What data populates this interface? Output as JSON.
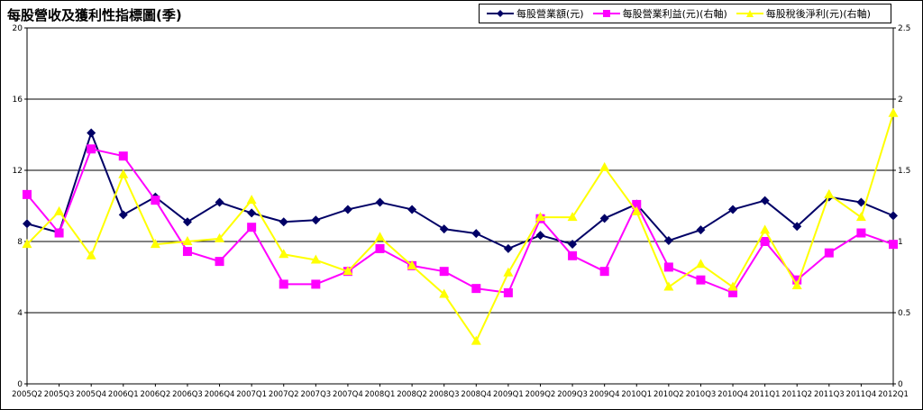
{
  "chart_data": {
    "type": "line",
    "title": "每股營收及獲利性指標圖(季)",
    "categories": [
      "2005Q2",
      "2005Q3",
      "2005Q4",
      "2006Q1",
      "2006Q2",
      "2006Q3",
      "2006Q4",
      "2007Q1",
      "2007Q2",
      "2007Q3",
      "2007Q4",
      "2008Q1",
      "2008Q2",
      "2008Q3",
      "2008Q4",
      "2009Q1",
      "2009Q2",
      "2009Q3",
      "2009Q4",
      "2010Q1",
      "2010Q2",
      "2010Q3",
      "2010Q4",
      "2011Q1",
      "2011Q2",
      "2011Q3",
      "2011Q4",
      "2012Q1"
    ],
    "y_left": {
      "range": [
        0,
        20
      ],
      "ticks": [
        "0",
        "4",
        "8",
        "12",
        "16",
        "20"
      ]
    },
    "y_right": {
      "range": [
        0,
        2.5
      ],
      "ticks": [
        "0",
        "0.5",
        "1",
        "1.5",
        "2",
        "2.5"
      ]
    },
    "grid": true,
    "legend_position": "top-right",
    "series": [
      {
        "name": "每股營業額(元)",
        "axis": "left",
        "color": "#000066",
        "marker": "diamond",
        "values": [
          9.0,
          8.5,
          14.1,
          9.5,
          10.5,
          9.1,
          10.2,
          9.6,
          9.1,
          9.2,
          9.8,
          10.2,
          9.8,
          8.7,
          8.45,
          7.6,
          8.35,
          7.85,
          9.3,
          10.1,
          8.05,
          8.65,
          9.8,
          10.3,
          8.85,
          10.5,
          10.2,
          9.45
        ]
      },
      {
        "name": "每股營業利益(元)(右軸)",
        "axis": "right",
        "color": "#FF00FF",
        "marker": "square",
        "values": [
          1.33,
          1.06,
          1.65,
          1.6,
          1.29,
          0.93,
          0.86,
          1.1,
          0.7,
          0.7,
          0.79,
          0.95,
          0.83,
          0.79,
          0.67,
          0.64,
          1.16,
          0.9,
          0.79,
          1.26,
          0.82,
          0.73,
          0.64,
          1.0,
          0.73,
          0.92,
          1.06,
          0.98
        ]
      },
      {
        "name": "每股稅後淨利(元)(右軸)",
        "axis": "right",
        "color": "#FFFF00",
        "marker": "triangle",
        "values": [
          0.98,
          1.21,
          0.9,
          1.47,
          0.98,
          1.0,
          1.02,
          1.29,
          0.91,
          0.87,
          0.79,
          1.03,
          0.83,
          0.63,
          0.3,
          0.78,
          1.17,
          1.17,
          1.52,
          1.21,
          0.68,
          0.84,
          0.68,
          1.08,
          0.69,
          1.33,
          1.17,
          1.9
        ]
      }
    ]
  }
}
